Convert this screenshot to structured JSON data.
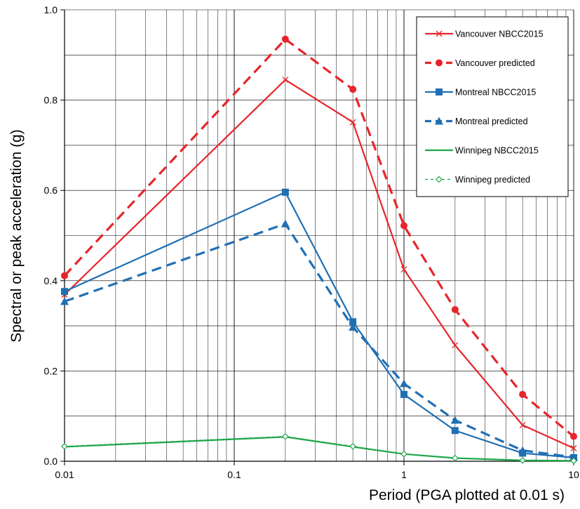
{
  "chart_data": {
    "type": "line",
    "xscale": "log",
    "xlim": [
      0.01,
      10
    ],
    "ylim": [
      0,
      1.0
    ],
    "xlabel": "Period (PGA plotted at 0.01 s)",
    "ylabel": "Spectral or peak acceleration (g)",
    "x_ticks": [
      "0.01",
      "0.1",
      "1",
      "10"
    ],
    "y_ticks": [
      "0.0",
      "0.2",
      "0.4",
      "0.6",
      "0.8",
      "1.0"
    ],
    "grid": true,
    "legend_position": "top-right",
    "x": [
      0.01,
      0.2,
      0.5,
      1,
      2,
      5,
      10
    ],
    "series": [
      {
        "name": "Vancouver NBCC2015",
        "color": "#e8242a",
        "dash": "solid",
        "marker": "x",
        "values": [
          0.369,
          0.845,
          0.751,
          0.425,
          0.257,
          0.08,
          0.029
        ]
      },
      {
        "name": "Vancouver predicted",
        "color": "#e8242a",
        "dash": "dashed",
        "marker": "circle",
        "values": [
          0.411,
          0.935,
          0.824,
          0.522,
          0.336,
          0.148,
          0.055
        ]
      },
      {
        "name": "Montreal NBCC2015",
        "color": "#1f6fb4",
        "dash": "solid",
        "marker": "square",
        "values": [
          0.376,
          0.596,
          0.309,
          0.148,
          0.068,
          0.018,
          0.008
        ]
      },
      {
        "name": "Montreal predicted",
        "color": "#1f6fb4",
        "dash": "dashed",
        "marker": "triangle",
        "values": [
          0.354,
          0.526,
          0.297,
          0.172,
          0.091,
          0.024,
          0.009
        ]
      },
      {
        "name": "Winnipeg NBCC2015",
        "color": "#1fa64a",
        "dash": "solid",
        "marker": "none",
        "values": [
          0.032,
          0.054,
          0.032,
          0.016,
          0.007,
          0.002,
          0.001
        ]
      },
      {
        "name": "Winnipeg predicted",
        "color": "#1fa64a",
        "dash": "dashed",
        "marker": "diamond",
        "values": [
          0.033,
          0.055,
          0.033,
          0.016,
          0.007,
          0.002,
          0.001
        ]
      }
    ]
  }
}
